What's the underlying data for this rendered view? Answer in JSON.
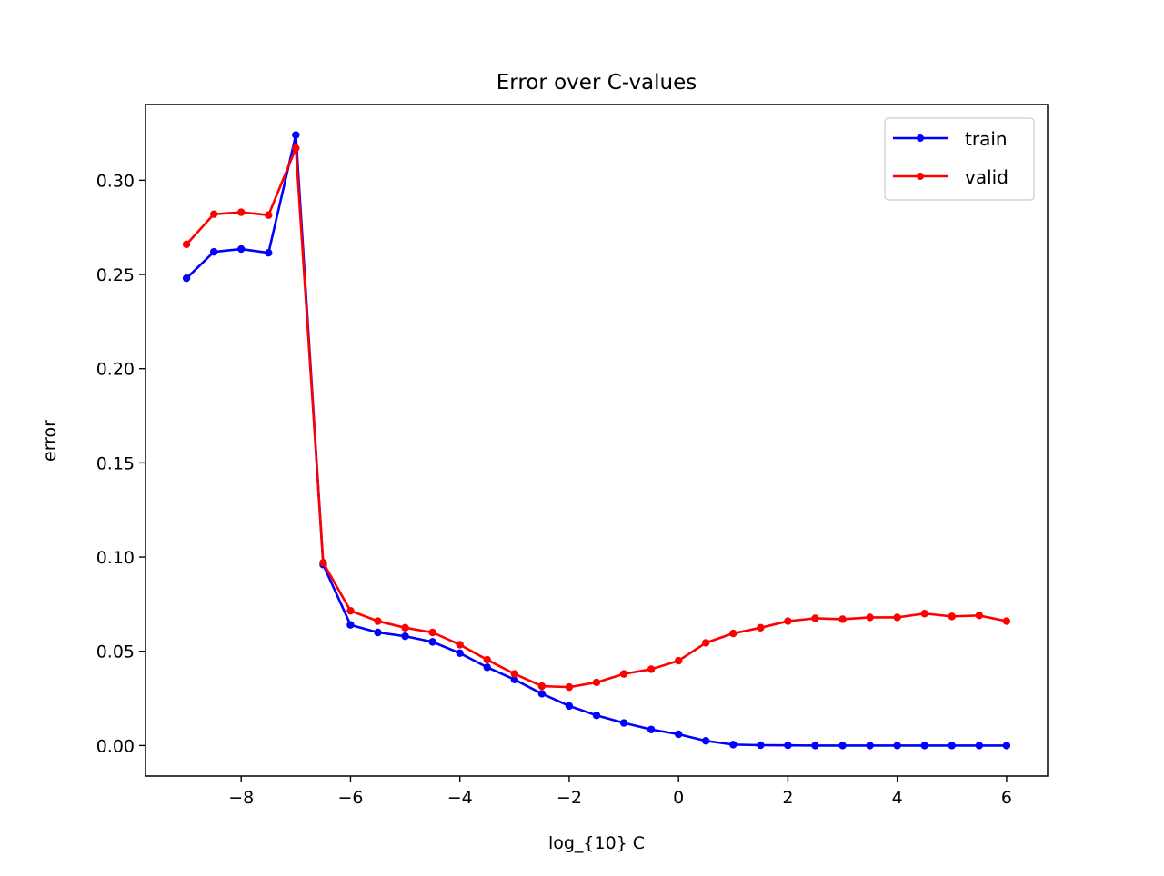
{
  "chart_data": {
    "type": "line",
    "title": "Error over C-values",
    "xlabel": "log_{10} C",
    "ylabel": "error",
    "xlim": [
      -9.75,
      6.75
    ],
    "ylim": [
      -0.0162,
      0.3402
    ],
    "xticks": [
      {
        "value": -8,
        "label": "−8"
      },
      {
        "value": -6,
        "label": "−6"
      },
      {
        "value": -4,
        "label": "−4"
      },
      {
        "value": -2,
        "label": "−2"
      },
      {
        "value": 0,
        "label": "0"
      },
      {
        "value": 2,
        "label": "2"
      },
      {
        "value": 4,
        "label": "4"
      },
      {
        "value": 6,
        "label": "6"
      }
    ],
    "yticks": [
      {
        "value": 0.0,
        "label": "0.00"
      },
      {
        "value": 0.05,
        "label": "0.05"
      },
      {
        "value": 0.1,
        "label": "0.10"
      },
      {
        "value": 0.15,
        "label": "0.15"
      },
      {
        "value": 0.2,
        "label": "0.20"
      },
      {
        "value": 0.25,
        "label": "0.25"
      },
      {
        "value": 0.3,
        "label": "0.30"
      }
    ],
    "x": [
      -9,
      -8.5,
      -8,
      -7.5,
      -7,
      -6.5,
      -6,
      -5.5,
      -5,
      -4.5,
      -4,
      -3.5,
      -3,
      -2.5,
      -2,
      -1.5,
      -1,
      -0.5,
      0,
      0.5,
      1,
      1.5,
      2,
      2.5,
      3,
      3.5,
      4,
      4.5,
      5,
      5.5,
      6
    ],
    "series": [
      {
        "name": "train",
        "color": "#0000ff",
        "values": [
          0.248,
          0.262,
          0.2635,
          0.2615,
          0.324,
          0.096,
          0.064,
          0.06,
          0.058,
          0.055,
          0.049,
          0.0415,
          0.035,
          0.0275,
          0.021,
          0.016,
          0.012,
          0.0085,
          0.006,
          0.0025,
          0.0005,
          0.0002,
          0.0001,
          0.0,
          0.0,
          0.0,
          0.0,
          0.0,
          0.0,
          0.0,
          0.0
        ]
      },
      {
        "name": "valid",
        "color": "#ff0000",
        "values": [
          0.266,
          0.282,
          0.283,
          0.2815,
          0.317,
          0.097,
          0.0715,
          0.066,
          0.0625,
          0.06,
          0.0535,
          0.0455,
          0.038,
          0.0315,
          0.031,
          0.0335,
          0.038,
          0.0405,
          0.045,
          0.0545,
          0.0595,
          0.0625,
          0.066,
          0.0675,
          0.067,
          0.068,
          0.068,
          0.07,
          0.0685,
          0.069,
          0.066
        ]
      }
    ],
    "grid": false,
    "legend": "top-right"
  }
}
